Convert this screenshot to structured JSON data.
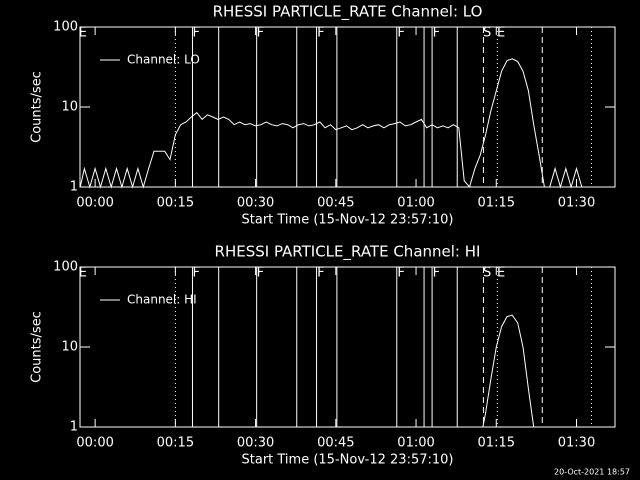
{
  "chart_data": [
    {
      "type": "line",
      "title": "RHESSI PARTICLE_RATE Channel: LO",
      "xlabel": "Start Time (15-Nov-12 23:57:10)",
      "ylabel": "Counts/sec",
      "log_y": true,
      "xlim": [
        -2.83,
        97.2
      ],
      "ylim": [
        1,
        100
      ],
      "yticks": [
        1,
        10,
        100
      ],
      "xticks": [
        {
          "value": 0,
          "label": "00:00"
        },
        {
          "value": 15,
          "label": "00:15"
        },
        {
          "value": 30,
          "label": "00:30"
        },
        {
          "value": 45,
          "label": "00:45"
        },
        {
          "value": 60,
          "label": "01:00"
        },
        {
          "value": 75,
          "label": "01:15"
        },
        {
          "value": 90,
          "label": "01:30"
        }
      ],
      "x": [
        -2.8,
        -2,
        -1,
        0,
        1,
        2,
        3,
        4,
        5,
        6,
        7,
        8,
        9,
        10,
        11,
        12,
        13,
        14,
        15,
        16,
        17,
        18,
        19,
        20,
        21,
        22,
        23,
        24,
        25,
        26,
        27,
        28,
        29,
        30,
        31,
        32,
        33,
        34,
        35,
        36,
        37,
        38,
        39,
        40,
        41,
        42,
        43,
        44,
        45,
        46,
        47,
        48,
        49,
        50,
        51,
        52,
        53,
        54,
        55,
        56,
        57,
        58,
        59,
        60,
        61,
        62,
        63,
        64,
        65,
        66,
        67,
        68,
        69,
        70,
        71,
        72,
        73,
        74,
        75,
        76,
        77,
        78,
        79,
        80,
        81,
        82,
        83,
        84,
        85,
        86,
        87,
        88,
        89,
        90,
        91,
        92
      ],
      "series": [
        {
          "name": "Channel: LO",
          "color": "#ffffff",
          "values": [
            1,
            1.7,
            1,
            1.7,
            1,
            1.7,
            1,
            1.7,
            1,
            1.7,
            1,
            1.7,
            1,
            1.7,
            2.8,
            2.8,
            2.8,
            2.2,
            4.5,
            6,
            6.5,
            7.5,
            8.5,
            7,
            8,
            7.5,
            7,
            7.5,
            7,
            6,
            6.5,
            6,
            6.2,
            5.8,
            6,
            6.5,
            6,
            5.8,
            6.2,
            6,
            5.5,
            6,
            6.2,
            5.8,
            6,
            6.5,
            5.5,
            6,
            5.2,
            5.5,
            5.8,
            5.2,
            5.5,
            6,
            5.5,
            5.8,
            6,
            5.5,
            6,
            6.2,
            6.5,
            5.8,
            6,
            6.5,
            7,
            5.5,
            6,
            5.5,
            5.8,
            5.5,
            6,
            5.5,
            1.2,
            1,
            1.7,
            2.5,
            4.5,
            9,
            16,
            28,
            38,
            40,
            37,
            28,
            16,
            6,
            2.5,
            1,
            1,
            1.7,
            1,
            1.7,
            1,
            1.7,
            1,
            1
          ]
        }
      ],
      "vlines": [
        {
          "x": 15,
          "style": "dotted"
        },
        {
          "x": 18.2,
          "style": "solid"
        },
        {
          "x": 23.1,
          "style": "solid"
        },
        {
          "x": 30.2,
          "style": "solid"
        },
        {
          "x": 37.7,
          "style": "solid"
        },
        {
          "x": 41.4,
          "style": "solid"
        },
        {
          "x": 45.2,
          "style": "solid"
        },
        {
          "x": 56.4,
          "style": "solid"
        },
        {
          "x": 61.5,
          "style": "solid"
        },
        {
          "x": 63,
          "style": "solid"
        },
        {
          "x": 67.7,
          "style": "solid"
        },
        {
          "x": 72.6,
          "style": "dashed"
        },
        {
          "x": 75.2,
          "style": "dotted"
        },
        {
          "x": 83.6,
          "style": "dashed"
        },
        {
          "x": 92.8,
          "style": "dotted"
        }
      ],
      "annotations": [
        {
          "text": "E",
          "x": -2.3
        },
        {
          "text": "F",
          "x": 18.9
        },
        {
          "text": "F",
          "x": 30.9
        },
        {
          "text": "F",
          "x": 42.2
        },
        {
          "text": "F",
          "x": 57.2
        },
        {
          "text": "F",
          "x": 63.8
        },
        {
          "text": "S",
          "x": 73.3
        },
        {
          "text": "E",
          "x": 75.9
        }
      ]
    },
    {
      "type": "line",
      "title": "RHESSI PARTICLE_RATE Channel: HI",
      "xlabel": "Start Time (15-Nov-12 23:57:10)",
      "ylabel": "Counts/sec",
      "log_y": true,
      "xlim": [
        -2.83,
        97.2
      ],
      "ylim": [
        1,
        100
      ],
      "yticks": [
        1,
        10,
        100
      ],
      "xticks": [
        {
          "value": 0,
          "label": "00:00"
        },
        {
          "value": 15,
          "label": "00:15"
        },
        {
          "value": 30,
          "label": "00:30"
        },
        {
          "value": 45,
          "label": "00:45"
        },
        {
          "value": 60,
          "label": "01:00"
        },
        {
          "value": 75,
          "label": "01:15"
        },
        {
          "value": 90,
          "label": "01:30"
        }
      ],
      "x": [
        72.5,
        73,
        74,
        75,
        76,
        77,
        78,
        79,
        80,
        81,
        82
      ],
      "series": [
        {
          "name": "Channel: HI",
          "color": "#ffffff",
          "values": [
            1,
            1.5,
            4,
            10,
            18,
            24,
            25,
            20,
            10,
            3,
            1
          ]
        }
      ],
      "vlines": [
        {
          "x": 15,
          "style": "dotted"
        },
        {
          "x": 18.2,
          "style": "solid"
        },
        {
          "x": 23.1,
          "style": "solid"
        },
        {
          "x": 30.2,
          "style": "solid"
        },
        {
          "x": 37.7,
          "style": "solid"
        },
        {
          "x": 41.4,
          "style": "solid"
        },
        {
          "x": 45.2,
          "style": "solid"
        },
        {
          "x": 56.4,
          "style": "solid"
        },
        {
          "x": 61.5,
          "style": "solid"
        },
        {
          "x": 63,
          "style": "solid"
        },
        {
          "x": 67.7,
          "style": "solid"
        },
        {
          "x": 72.6,
          "style": "dashed"
        },
        {
          "x": 75.2,
          "style": "dotted"
        },
        {
          "x": 83.6,
          "style": "dashed"
        },
        {
          "x": 92.8,
          "style": "dotted"
        }
      ],
      "annotations": [
        {
          "text": "E",
          "x": -2.3
        },
        {
          "text": "F",
          "x": 18.9
        },
        {
          "text": "F",
          "x": 30.9
        },
        {
          "text": "F",
          "x": 42.2
        },
        {
          "text": "F",
          "x": 57.2
        },
        {
          "text": "F",
          "x": 63.8
        },
        {
          "text": "S",
          "x": 73.3
        },
        {
          "text": "E",
          "x": 75.9
        }
      ]
    }
  ],
  "timestamp": "20-Oct-2021 18:57"
}
